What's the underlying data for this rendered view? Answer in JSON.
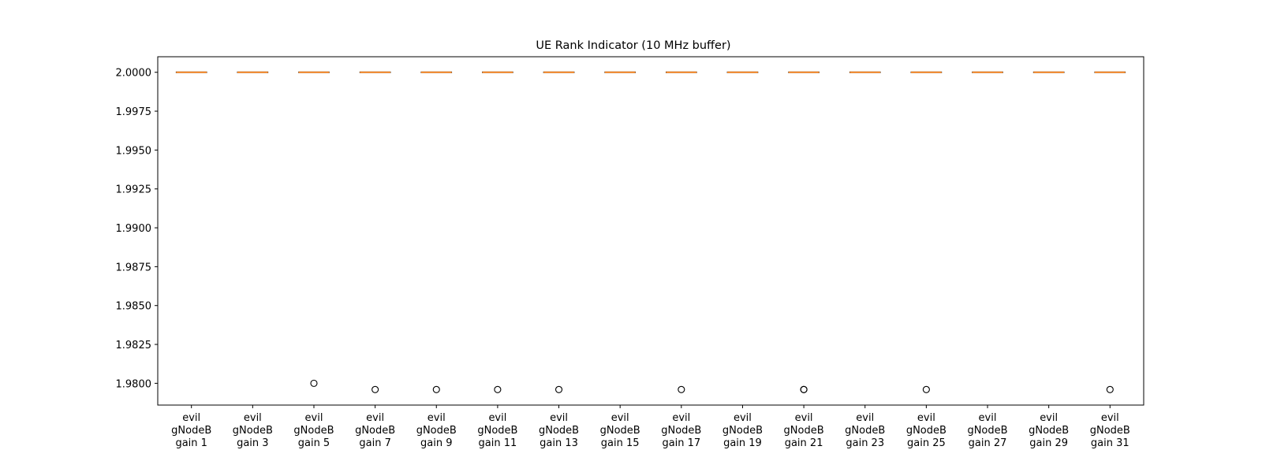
{
  "chart_data": {
    "type": "boxplot",
    "title": "UE Rank Indicator (10 MHz buffer)",
    "xlabel": "",
    "ylabel": "",
    "ylim": [
      1.9786,
      2.001
    ],
    "yticks": [
      "2.0000",
      "1.9975",
      "1.9950",
      "1.9925",
      "1.9900",
      "1.9875",
      "1.9850",
      "1.9825",
      "1.9800"
    ],
    "ytick_values": [
      2.0,
      1.9975,
      1.995,
      1.9925,
      1.99,
      1.9875,
      1.985,
      1.9825,
      1.98
    ],
    "grid": false,
    "categories": [
      [
        "evil",
        "gNodeB",
        "gain 1"
      ],
      [
        "evil",
        "gNodeB",
        "gain 3"
      ],
      [
        "evil",
        "gNodeB",
        "gain 5"
      ],
      [
        "evil",
        "gNodeB",
        "gain 7"
      ],
      [
        "evil",
        "gNodeB",
        "gain 9"
      ],
      [
        "evil",
        "gNodeB",
        "gain 11"
      ],
      [
        "evil",
        "gNodeB",
        "gain 13"
      ],
      [
        "evil",
        "gNodeB",
        "gain 15"
      ],
      [
        "evil",
        "gNodeB",
        "gain 17"
      ],
      [
        "evil",
        "gNodeB",
        "gain 19"
      ],
      [
        "evil",
        "gNodeB",
        "gain 21"
      ],
      [
        "evil",
        "gNodeB",
        "gain 23"
      ],
      [
        "evil",
        "gNodeB",
        "gain 25"
      ],
      [
        "evil",
        "gNodeB",
        "gain 27"
      ],
      [
        "evil",
        "gNodeB",
        "gain 29"
      ],
      [
        "evil",
        "gNodeB",
        "gain 31"
      ]
    ],
    "boxes": [
      {
        "median": 2.0,
        "q1": 2.0,
        "q3": 2.0,
        "whisker_low": 2.0,
        "whisker_high": 2.0,
        "outliers": []
      },
      {
        "median": 2.0,
        "q1": 2.0,
        "q3": 2.0,
        "whisker_low": 2.0,
        "whisker_high": 2.0,
        "outliers": []
      },
      {
        "median": 2.0,
        "q1": 2.0,
        "q3": 2.0,
        "whisker_low": 2.0,
        "whisker_high": 2.0,
        "outliers": [
          1.98
        ]
      },
      {
        "median": 2.0,
        "q1": 2.0,
        "q3": 2.0,
        "whisker_low": 2.0,
        "whisker_high": 2.0,
        "outliers": [
          1.9796
        ]
      },
      {
        "median": 2.0,
        "q1": 2.0,
        "q3": 2.0,
        "whisker_low": 2.0,
        "whisker_high": 2.0,
        "outliers": [
          1.9796
        ]
      },
      {
        "median": 2.0,
        "q1": 2.0,
        "q3": 2.0,
        "whisker_low": 2.0,
        "whisker_high": 2.0,
        "outliers": [
          1.9796
        ]
      },
      {
        "median": 2.0,
        "q1": 2.0,
        "q3": 2.0,
        "whisker_low": 2.0,
        "whisker_high": 2.0,
        "outliers": [
          1.9796
        ]
      },
      {
        "median": 2.0,
        "q1": 2.0,
        "q3": 2.0,
        "whisker_low": 2.0,
        "whisker_high": 2.0,
        "outliers": []
      },
      {
        "median": 2.0,
        "q1": 2.0,
        "q3": 2.0,
        "whisker_low": 2.0,
        "whisker_high": 2.0,
        "outliers": [
          1.9796
        ]
      },
      {
        "median": 2.0,
        "q1": 2.0,
        "q3": 2.0,
        "whisker_low": 2.0,
        "whisker_high": 2.0,
        "outliers": []
      },
      {
        "median": 2.0,
        "q1": 2.0,
        "q3": 2.0,
        "whisker_low": 2.0,
        "whisker_high": 2.0,
        "outliers": [
          1.9796,
          1.9796
        ]
      },
      {
        "median": 2.0,
        "q1": 2.0,
        "q3": 2.0,
        "whisker_low": 2.0,
        "whisker_high": 2.0,
        "outliers": []
      },
      {
        "median": 2.0,
        "q1": 2.0,
        "q3": 2.0,
        "whisker_low": 2.0,
        "whisker_high": 2.0,
        "outliers": [
          1.9796
        ]
      },
      {
        "median": 2.0,
        "q1": 2.0,
        "q3": 2.0,
        "whisker_low": 2.0,
        "whisker_high": 2.0,
        "outliers": []
      },
      {
        "median": 2.0,
        "q1": 2.0,
        "q3": 2.0,
        "whisker_low": 2.0,
        "whisker_high": 2.0,
        "outliers": []
      },
      {
        "median": 2.0,
        "q1": 2.0,
        "q3": 2.0,
        "whisker_low": 2.0,
        "whisker_high": 2.0,
        "outliers": [
          1.9796
        ]
      }
    ],
    "colors": {
      "box": "#000000",
      "median": "#ff7f0e",
      "outlier_edge": "#000000"
    }
  }
}
